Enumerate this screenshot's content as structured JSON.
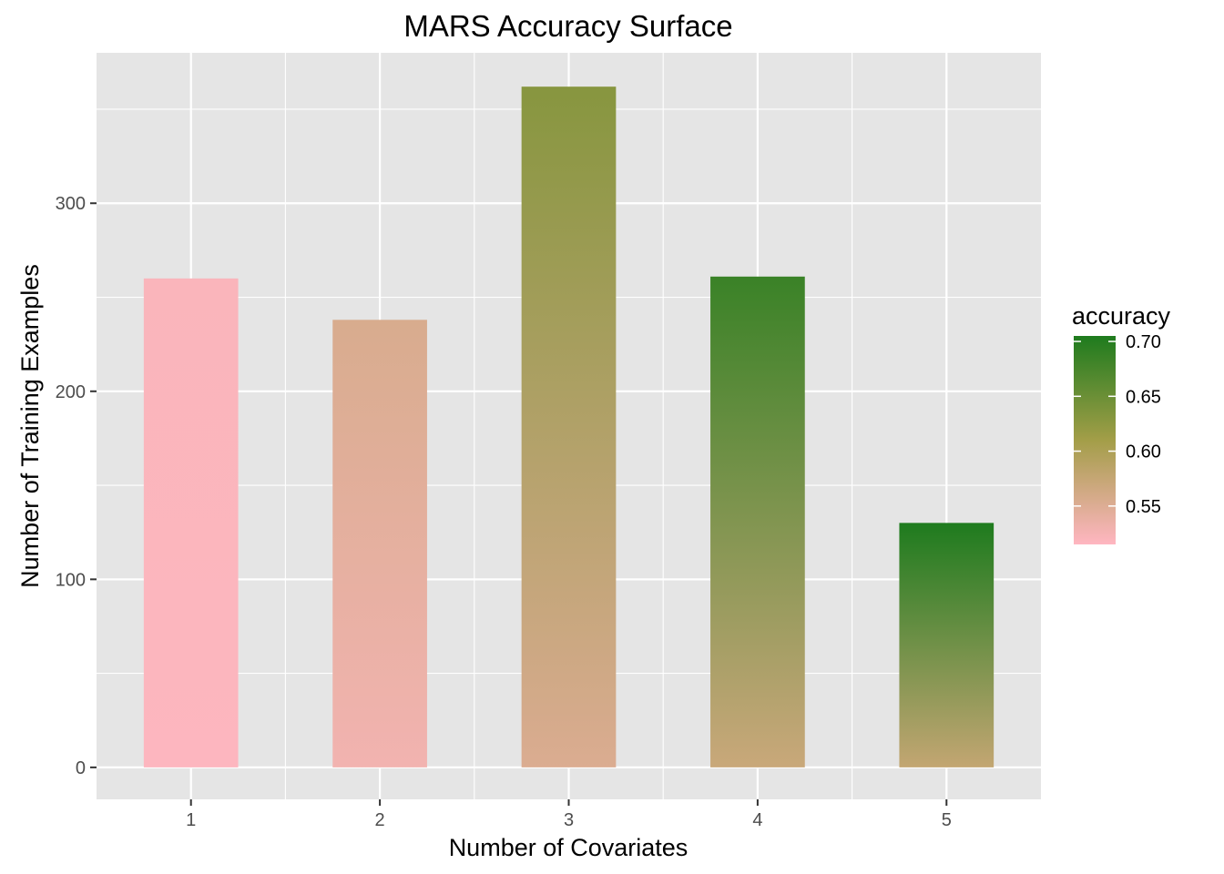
{
  "chart_data": {
    "type": "bar",
    "title": "MARS Accuracy Surface",
    "xlabel": "Number of Covariates",
    "ylabel": "Number of Training Examples",
    "categories": [
      "1",
      "2",
      "3",
      "4",
      "5"
    ],
    "values": [
      260,
      238,
      362,
      261,
      130
    ],
    "accuracy": [
      0.52,
      0.555,
      0.63,
      0.685,
      0.705
    ],
    "ylim": [
      -17,
      380
    ],
    "yticks": [
      0,
      100,
      200,
      300
    ],
    "grid": true,
    "legend": {
      "title": "accuracy",
      "position": "right",
      "type": "gradient",
      "range": [
        0.515,
        0.705
      ],
      "ticks": [
        0.55,
        0.6,
        0.65,
        0.7
      ],
      "tick_labels": [
        "0.55",
        "0.60",
        "0.65",
        "0.70"
      ],
      "low_color": "#ffb6c1",
      "high_color": "#1e7b1e"
    },
    "panel_color": "#e5e5e5",
    "grid_color": "#ffffff"
  }
}
